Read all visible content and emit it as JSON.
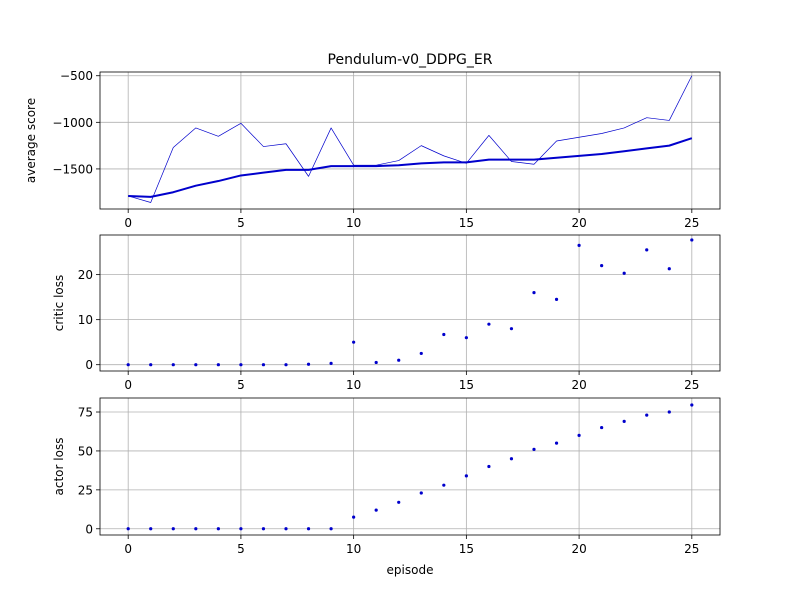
{
  "chart_data": {
    "title": "Pendulum-v0_DDPG_ER",
    "xlabel": "episode",
    "x_ticks": [
      0,
      5,
      10,
      15,
      20,
      25
    ],
    "x_range": [
      -1.25,
      26.25
    ],
    "grid": true,
    "x": [
      0,
      1,
      2,
      3,
      4,
      5,
      6,
      7,
      8,
      9,
      10,
      11,
      12,
      13,
      14,
      15,
      16,
      17,
      18,
      19,
      20,
      21,
      22,
      23,
      24,
      25
    ],
    "subplots": [
      {
        "type": "line",
        "ylabel": "average score",
        "ylim": [
          -1930,
          -460
        ],
        "y_ticks": [
          -1500,
          -1000,
          -500
        ],
        "y_tick_labels": [
          "−1500",
          "−1000",
          "−500"
        ],
        "series": [
          {
            "role": "raw",
            "color": "#0000cc",
            "values": [
              -1790,
              -1860,
              -1270,
              -1060,
              -1150,
              -1010,
              -1260,
              -1230,
              -1580,
              -1060,
              -1460,
              -1460,
              -1410,
              -1250,
              -1360,
              -1440,
              -1140,
              -1420,
              -1450,
              -1200,
              -1160,
              -1120,
              -1060,
              -950,
              -980,
              -500
            ]
          },
          {
            "role": "average",
            "color": "#0000cc",
            "values": [
              -1790,
              -1800,
              -1750,
              -1680,
              -1630,
              -1570,
              -1540,
              -1510,
              -1510,
              -1470,
              -1470,
              -1470,
              -1460,
              -1440,
              -1430,
              -1430,
              -1400,
              -1400,
              -1400,
              -1380,
              -1360,
              -1340,
              -1310,
              -1280,
              -1250,
              -1170
            ]
          }
        ]
      },
      {
        "type": "scatter",
        "ylabel": "critic loss",
        "ylim": [
          -1.4,
          28.8
        ],
        "y_ticks": [
          0,
          10,
          20
        ],
        "y_tick_labels": [
          "0",
          "10",
          "20"
        ],
        "series": [
          {
            "color": "#0000cc",
            "values": [
              0,
              0,
              0,
              0,
              0,
              0,
              0,
              0,
              0.1,
              0.3,
              5,
              0.5,
              1,
              2.5,
              6.7,
              6,
              9,
              8,
              16,
              14.5,
              26.5,
              22,
              20.3,
              25.5,
              21.3,
              27.7
            ]
          }
        ]
      },
      {
        "type": "scatter",
        "ylabel": "actor loss",
        "ylim": [
          -4,
          84
        ],
        "y_ticks": [
          0,
          25,
          50,
          75
        ],
        "y_tick_labels": [
          "0",
          "25",
          "50",
          "75"
        ],
        "series": [
          {
            "color": "#0000cc",
            "values": [
              0,
              0,
              0,
              0,
              0,
              0,
              0,
              0,
              0,
              0,
              7.5,
              12,
              17,
              23,
              28,
              34,
              40,
              45,
              51,
              55,
              60,
              65,
              69,
              73,
              75,
              79.5
            ]
          }
        ]
      }
    ]
  }
}
